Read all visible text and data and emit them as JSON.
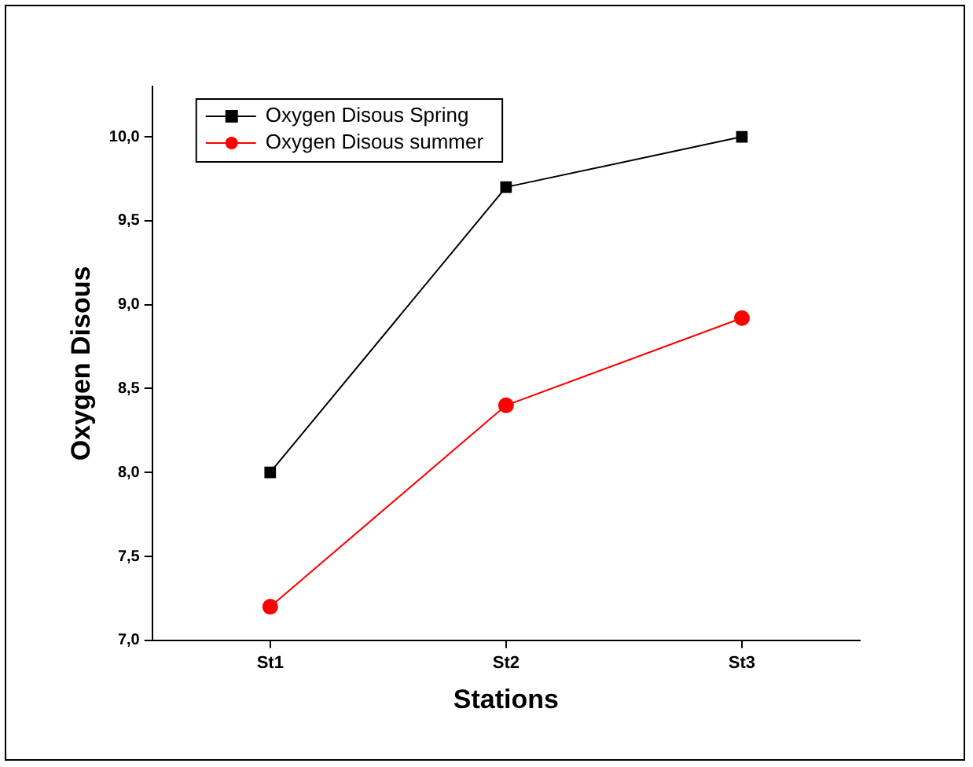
{
  "chart_data": {
    "type": "line",
    "xlabel": "Stations",
    "ylabel": "Oxygen Disous",
    "categories": [
      "St1",
      "St2",
      "St3"
    ],
    "series": [
      {
        "name": "Oxygen Disous Spring",
        "color": "#000000",
        "marker": "square",
        "values": [
          8.0,
          9.7,
          10.0
        ]
      },
      {
        "name": "Oxygen Disous summer",
        "color": "#ff0000",
        "marker": "circle",
        "values": [
          7.2,
          8.4,
          8.92
        ]
      }
    ],
    "ylim": [
      7,
      10.3
    ],
    "yticks": [
      {
        "value": 7,
        "label": "7,0"
      },
      {
        "value": 7.5,
        "label": "7,5"
      },
      {
        "value": 8,
        "label": "8,0"
      },
      {
        "value": 8.5,
        "label": "8,5"
      },
      {
        "value": 9,
        "label": "9,0"
      },
      {
        "value": 9.5,
        "label": "9,5"
      },
      {
        "value": 10,
        "label": "10,0"
      }
    ],
    "grid": false,
    "legend": "top left",
    "line_style": "solid"
  }
}
